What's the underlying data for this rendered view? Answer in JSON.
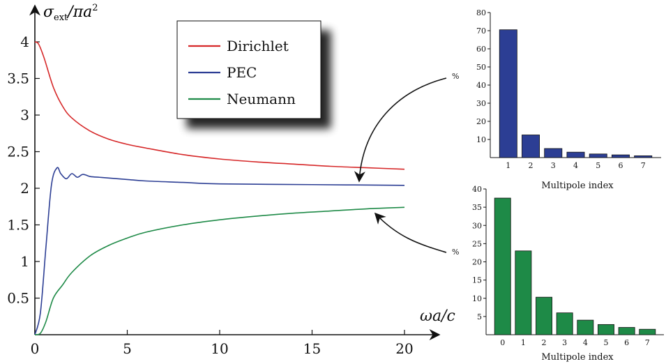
{
  "chart_data": [
    {
      "type": "line",
      "xlabel": "ωa/c",
      "ylabel": "σ_ext/πa²",
      "ylabel_parts": {
        "sigma": "σ",
        "sub": "ext",
        "rest": "/πa",
        "sup": "2"
      },
      "xlim": [
        0,
        20
      ],
      "ylim": [
        0,
        4.2
      ],
      "x_ticks": [
        0,
        5,
        10,
        15,
        20
      ],
      "y_ticks": [
        0.5,
        1,
        1.5,
        2,
        2.5,
        3,
        3.5,
        4
      ],
      "y_tick_labels": [
        "0.5",
        "1",
        "1.5",
        "2",
        "2.5",
        "3",
        "3.5",
        "4"
      ],
      "x_tick_labels": [
        "0",
        "5",
        "10",
        "15",
        "20"
      ],
      "grid": false,
      "legend_position": "top-center",
      "series": [
        {
          "name": "Dirichlet",
          "color": "#d62728",
          "x": [
            0,
            0.2,
            0.5,
            1,
            1.5,
            2,
            3,
            4,
            5,
            6,
            8,
            10,
            12,
            14,
            16,
            18,
            20
          ],
          "y": [
            4.0,
            3.97,
            3.78,
            3.38,
            3.12,
            2.96,
            2.78,
            2.67,
            2.6,
            2.55,
            2.46,
            2.4,
            2.36,
            2.33,
            2.3,
            2.28,
            2.26
          ]
        },
        {
          "name": "PEC",
          "color": "#2c3e94",
          "x": [
            0,
            0.3,
            0.6,
            0.9,
            1.2,
            1.4,
            1.7,
            2.0,
            2.3,
            2.6,
            3.0,
            3.5,
            4.0,
            5,
            6,
            8,
            10,
            15,
            20
          ],
          "y": [
            0,
            0.3,
            1.2,
            2.05,
            2.28,
            2.2,
            2.13,
            2.2,
            2.15,
            2.19,
            2.16,
            2.15,
            2.14,
            2.12,
            2.1,
            2.08,
            2.06,
            2.05,
            2.04
          ]
        },
        {
          "name": "Neumann",
          "color": "#1e8a47",
          "x": [
            0,
            0.3,
            0.6,
            1,
            1.5,
            2,
            3,
            4,
            5,
            6,
            8,
            10,
            12,
            14,
            16,
            18,
            20
          ],
          "y": [
            0,
            0.02,
            0.18,
            0.5,
            0.68,
            0.85,
            1.08,
            1.22,
            1.32,
            1.4,
            1.5,
            1.57,
            1.62,
            1.66,
            1.69,
            1.72,
            1.74
          ]
        }
      ],
      "annotations": [
        {
          "text": "%",
          "target_series": "PEC"
        },
        {
          "text": "%",
          "target_series": "Neumann"
        }
      ]
    },
    {
      "type": "bar",
      "xlabel": "Multipole index",
      "categories": [
        "1",
        "2",
        "3",
        "4",
        "5",
        "6",
        "7"
      ],
      "values": [
        70.5,
        12.5,
        5.0,
        3.0,
        2.0,
        1.5,
        1.0
      ],
      "ylim": [
        0,
        80
      ],
      "y_ticks": [
        10,
        20,
        30,
        40,
        50,
        60,
        70,
        80
      ],
      "color": "#2c3e94"
    },
    {
      "type": "bar",
      "xlabel": "Multipole index",
      "categories": [
        "0",
        "1",
        "2",
        "3",
        "4",
        "5",
        "6",
        "7"
      ],
      "values": [
        37.5,
        23.0,
        10.3,
        6.0,
        4.0,
        2.8,
        2.0,
        1.5
      ],
      "ylim": [
        0,
        40
      ],
      "y_ticks": [
        5,
        10,
        15,
        20,
        25,
        30,
        35,
        40
      ],
      "color": "#1e8a47"
    }
  ]
}
